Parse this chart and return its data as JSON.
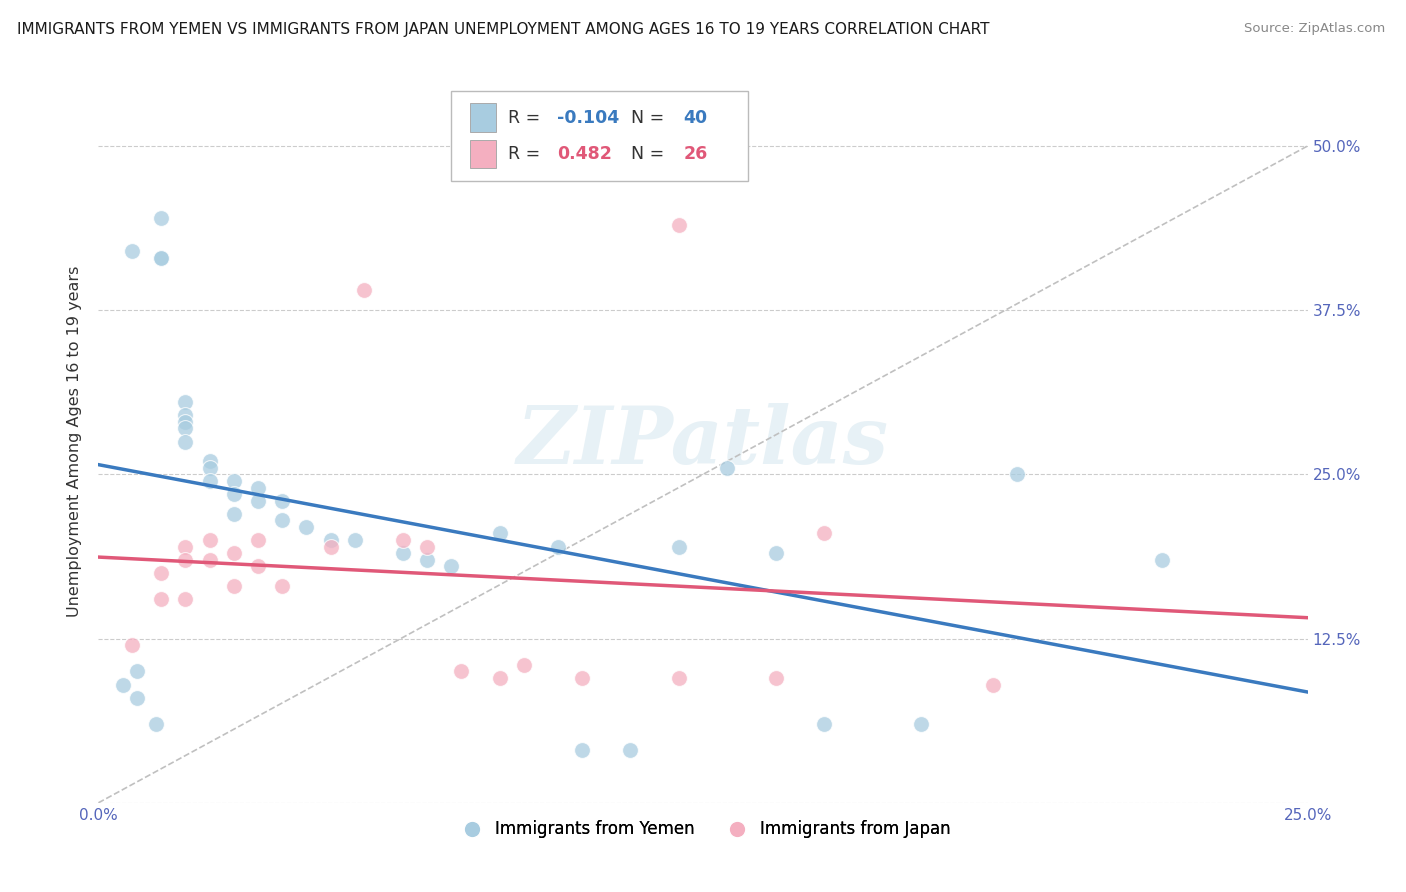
{
  "title": "IMMIGRANTS FROM YEMEN VS IMMIGRANTS FROM JAPAN UNEMPLOYMENT AMONG AGES 16 TO 19 YEARS CORRELATION CHART",
  "source": "Source: ZipAtlas.com",
  "ylabel": "Unemployment Among Ages 16 to 19 years",
  "xlim": [
    0.0,
    0.25
  ],
  "ylim": [
    0.0,
    0.55
  ],
  "x_ticks": [
    0.0,
    0.05,
    0.1,
    0.15,
    0.2,
    0.25
  ],
  "x_tick_labels": [
    "0.0%",
    "",
    "",
    "",
    "",
    "25.0%"
  ],
  "y_ticks": [
    0.0,
    0.125,
    0.25,
    0.375,
    0.5
  ],
  "y_tick_labels": [
    "",
    "12.5%",
    "25.0%",
    "37.5%",
    "50.0%"
  ],
  "r_yemen": -0.104,
  "n_yemen": 40,
  "r_japan": 0.482,
  "n_japan": 26,
  "color_yemen": "#a8cce0",
  "color_japan": "#f4afc0",
  "color_line_yemen": "#3a7abf",
  "color_line_japan": "#e05878",
  "color_text_yemen": "#3a7abf",
  "color_text_japan": "#e05878",
  "color_dashed_line": "#c0c0c0",
  "watermark": "ZIPatlas",
  "yemen_x": [
    0.007,
    0.013,
    0.013,
    0.013,
    0.018,
    0.018,
    0.018,
    0.018,
    0.018,
    0.023,
    0.023,
    0.023,
    0.028,
    0.028,
    0.028,
    0.033,
    0.033,
    0.038,
    0.038,
    0.043,
    0.048,
    0.053,
    0.063,
    0.068,
    0.073,
    0.083,
    0.095,
    0.1,
    0.11,
    0.12,
    0.13,
    0.14,
    0.15,
    0.17,
    0.19,
    0.22,
    0.005,
    0.008,
    0.008,
    0.012
  ],
  "yemen_y": [
    0.42,
    0.445,
    0.415,
    0.415,
    0.305,
    0.295,
    0.29,
    0.285,
    0.275,
    0.26,
    0.255,
    0.245,
    0.245,
    0.235,
    0.22,
    0.24,
    0.23,
    0.23,
    0.215,
    0.21,
    0.2,
    0.2,
    0.19,
    0.185,
    0.18,
    0.205,
    0.195,
    0.04,
    0.04,
    0.195,
    0.255,
    0.19,
    0.06,
    0.06,
    0.25,
    0.185,
    0.09,
    0.1,
    0.08,
    0.06
  ],
  "japan_x": [
    0.007,
    0.013,
    0.013,
    0.018,
    0.018,
    0.018,
    0.023,
    0.023,
    0.028,
    0.028,
    0.033,
    0.033,
    0.038,
    0.048,
    0.055,
    0.063,
    0.068,
    0.075,
    0.083,
    0.088,
    0.1,
    0.12,
    0.14,
    0.15,
    0.185,
    0.12
  ],
  "japan_y": [
    0.12,
    0.175,
    0.155,
    0.195,
    0.185,
    0.155,
    0.2,
    0.185,
    0.19,
    0.165,
    0.2,
    0.18,
    0.165,
    0.195,
    0.39,
    0.2,
    0.195,
    0.1,
    0.095,
    0.105,
    0.095,
    0.095,
    0.095,
    0.205,
    0.09,
    0.44
  ]
}
